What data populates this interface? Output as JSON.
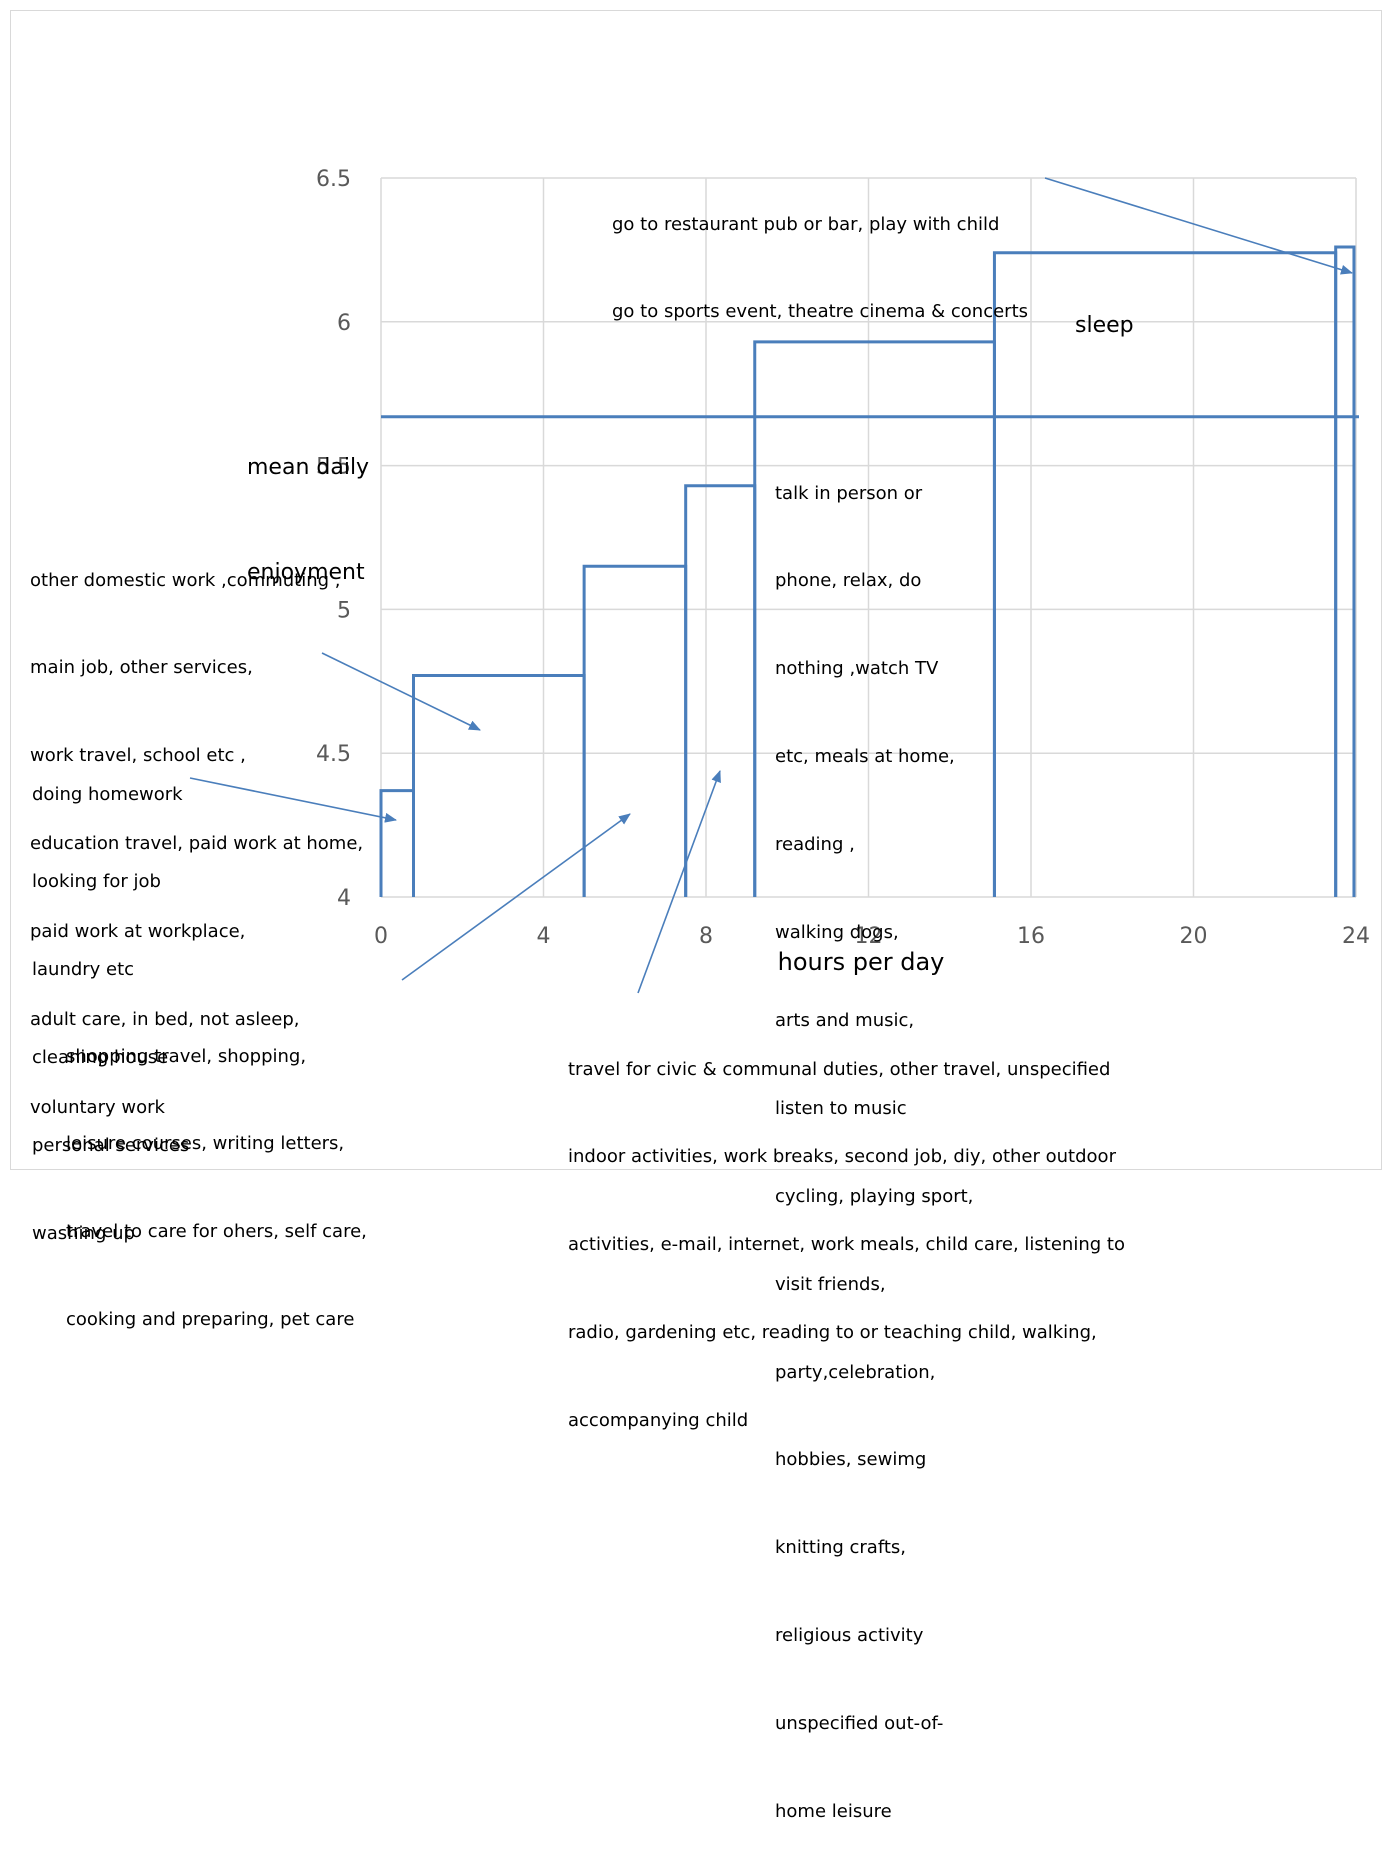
{
  "chart_data": {
    "type": "step",
    "xlabel": "hours per day",
    "ylabel": "",
    "xlim": [
      0,
      24
    ],
    "ylim": [
      4,
      6.5
    ],
    "x_ticks": [
      "0",
      "4",
      "8",
      "12",
      "16",
      "20",
      "24"
    ],
    "y_ticks": [
      "4",
      "4.5",
      "5",
      "5.5",
      "6",
      "6.5"
    ],
    "grid": true,
    "steps": [
      {
        "x_start": 0,
        "x_end": 0.8,
        "value": 4.37
      },
      {
        "x_start": 0.8,
        "x_end": 5,
        "value": 4.77
      },
      {
        "x_start": 5,
        "x_end": 7.5,
        "value": 5.15
      },
      {
        "x_start": 7.5,
        "x_end": 9.2,
        "value": 5.43
      },
      {
        "x_start": 9.2,
        "x_end": 15.1,
        "value": 5.93
      },
      {
        "x_start": 15.1,
        "x_end": 23.5,
        "value": 6.24
      },
      {
        "x_start": 23.5,
        "x_end": 23.95,
        "value": 6.26
      }
    ],
    "mean_line": {
      "value": 5.67,
      "label_lines": [
        "mean daily",
        "enjoyment"
      ]
    },
    "annotations": [
      {
        "lines": [
          "go to restaurant pub or bar, play with child",
          "go to sports event, theatre cinema & concerts"
        ]
      },
      {
        "lines": [
          "sleep"
        ]
      },
      {
        "lines": [
          "talk in person or",
          "phone, relax, do",
          "nothing ,watch TV",
          "etc, meals at home,",
          "reading ,",
          "walking dogs,",
          "arts and music,",
          "listen to music",
          "cycling, playing sport,",
          "visit friends,",
          "party,celebration,",
          "hobbies, sewimg",
          "knitting crafts,",
          "religious activity",
          "unspecified out-of-",
          "home leisure"
        ]
      },
      {
        "lines": [
          "other domestic work ,commuting ,",
          "main job, other services,",
          "work travel, school etc ,",
          "education travel, paid work at home,",
          "paid work at workplace,",
          "adult care, in bed, not asleep,",
          "voluntary work"
        ]
      },
      {
        "lines": [
          "doing homework",
          "looking for job",
          "laundry etc",
          "cleaning house",
          "personal services",
          "washing up"
        ]
      },
      {
        "lines": [
          "shopping travel, shopping,",
          "leisure courses, writing letters,",
          "travel to care for ohers, self care,",
          "cooking and preparing, pet care"
        ]
      },
      {
        "lines": [
          "travel for civic & communal duties, other travel, unspecified",
          "indoor activities, work breaks, second job, diy, other outdoor",
          "activities, e-mail, internet, work meals, child care, listening to",
          "radio, gardening etc, reading to or teaching child, walking,",
          "accompanying child"
        ]
      }
    ],
    "colors": {
      "series": "#4a7ebb",
      "grid": "#d9d9d9",
      "tick_text": "#595959"
    }
  }
}
